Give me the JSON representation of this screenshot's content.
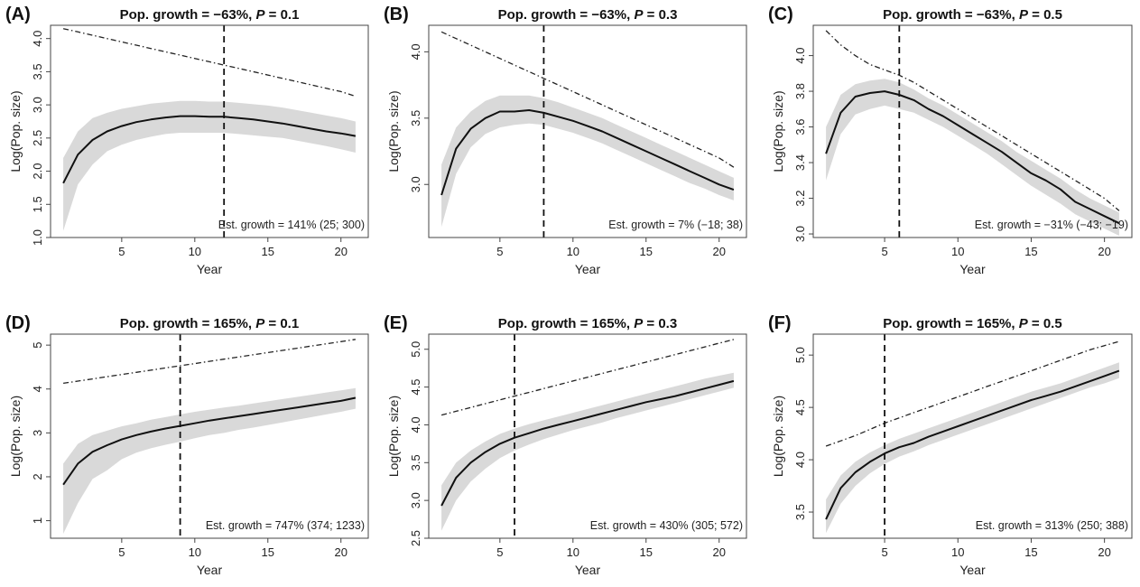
{
  "chart_data": [
    {
      "panel": "(A)",
      "type": "line",
      "title": "Pop. growth = −63%,",
      "title_p_symbol": "P",
      "title_p_value": "= 0.1",
      "xlabel": "Year",
      "ylabel": "Log(Pop. size)",
      "xlim": [
        1,
        21
      ],
      "ylim": [
        1.0,
        4.2
      ],
      "xticks": [
        5,
        10,
        15,
        20
      ],
      "yticks": [
        1.0,
        1.5,
        2.0,
        2.5,
        3.0,
        3.5,
        4.0
      ],
      "ytick_labels": [
        "1.0",
        "1.5",
        "2.0",
        "2.5",
        "3.0",
        "3.5",
        "4.0"
      ],
      "vline_x": 12,
      "annotation": "Est. growth = 141% (25; 300)",
      "x": [
        1,
        2,
        3,
        4,
        5,
        6,
        7,
        8,
        9,
        10,
        11,
        12,
        13,
        14,
        15,
        16,
        17,
        18,
        19,
        20,
        21
      ],
      "series": [
        {
          "style": "solid",
          "values": [
            1.82,
            2.25,
            2.47,
            2.6,
            2.68,
            2.74,
            2.78,
            2.81,
            2.83,
            2.83,
            2.82,
            2.82,
            2.8,
            2.78,
            2.75,
            2.72,
            2.68,
            2.64,
            2.6,
            2.57,
            2.53
          ],
          "ci_lower": [
            1.1,
            1.8,
            2.1,
            2.3,
            2.4,
            2.47,
            2.52,
            2.56,
            2.58,
            2.58,
            2.58,
            2.58,
            2.56,
            2.54,
            2.52,
            2.5,
            2.46,
            2.42,
            2.38,
            2.33,
            2.28
          ],
          "ci_upper": [
            2.2,
            2.6,
            2.8,
            2.88,
            2.94,
            2.98,
            3.02,
            3.04,
            3.06,
            3.06,
            3.05,
            3.05,
            3.03,
            3.01,
            2.99,
            2.96,
            2.92,
            2.88,
            2.84,
            2.8,
            2.75
          ]
        },
        {
          "style": "dotdash",
          "values": [
            4.15,
            4.1,
            4.05,
            4.0,
            3.95,
            3.9,
            3.85,
            3.8,
            3.75,
            3.7,
            3.65,
            3.6,
            3.55,
            3.5,
            3.45,
            3.4,
            3.35,
            3.3,
            3.25,
            3.2,
            3.13
          ]
        }
      ]
    },
    {
      "panel": "(B)",
      "type": "line",
      "title": "Pop. growth = −63%,",
      "title_p_symbol": "P",
      "title_p_value": "= 0.3",
      "xlabel": "Year",
      "ylabel": "Log(Pop. size)",
      "xlim": [
        1,
        21
      ],
      "ylim": [
        2.6,
        4.2
      ],
      "xticks": [
        5,
        10,
        15,
        20
      ],
      "yticks": [
        3.0,
        3.5,
        4.0
      ],
      "ytick_labels": [
        "3.0",
        "3.5",
        "4.0"
      ],
      "vline_x": 8,
      "annotation": "Est. growth = 7% (−18; 38)",
      "x": [
        1,
        2,
        3,
        4,
        5,
        6,
        7,
        8,
        9,
        10,
        11,
        12,
        13,
        14,
        15,
        16,
        17,
        18,
        19,
        20,
        21
      ],
      "series": [
        {
          "style": "solid",
          "values": [
            2.92,
            3.27,
            3.42,
            3.5,
            3.55,
            3.55,
            3.56,
            3.54,
            3.51,
            3.48,
            3.44,
            3.4,
            3.35,
            3.3,
            3.25,
            3.2,
            3.15,
            3.1,
            3.05,
            3.0,
            2.96
          ],
          "ci_lower": [
            2.68,
            3.08,
            3.28,
            3.38,
            3.43,
            3.45,
            3.46,
            3.45,
            3.42,
            3.39,
            3.35,
            3.31,
            3.26,
            3.21,
            3.16,
            3.11,
            3.06,
            3.01,
            2.97,
            2.92,
            2.88
          ],
          "ci_upper": [
            3.15,
            3.43,
            3.55,
            3.63,
            3.67,
            3.67,
            3.67,
            3.65,
            3.62,
            3.58,
            3.54,
            3.5,
            3.45,
            3.4,
            3.35,
            3.3,
            3.25,
            3.2,
            3.15,
            3.1,
            3.05
          ]
        },
        {
          "style": "dotdash",
          "values": [
            4.15,
            4.1,
            4.05,
            4.0,
            3.95,
            3.9,
            3.85,
            3.8,
            3.75,
            3.7,
            3.65,
            3.6,
            3.55,
            3.5,
            3.45,
            3.4,
            3.35,
            3.3,
            3.25,
            3.2,
            3.13
          ]
        }
      ]
    },
    {
      "panel": "(C)",
      "type": "line",
      "title": "Pop. growth = −63%,",
      "title_p_symbol": "P",
      "title_p_value": "= 0.5",
      "xlabel": "Year",
      "ylabel": "Log(Pop. size)",
      "xlim": [
        1,
        21
      ],
      "ylim": [
        2.98,
        4.17
      ],
      "xticks": [
        5,
        10,
        15,
        20
      ],
      "yticks": [
        3.0,
        3.2,
        3.4,
        3.6,
        3.8,
        4.0
      ],
      "ytick_labels": [
        "3.0",
        "3.2",
        "3.4",
        "3.6",
        "3.8",
        "4.0"
      ],
      "vline_x": 6,
      "annotation": "Est. growth = −31% (−43; −19)",
      "x": [
        1,
        2,
        3,
        4,
        5,
        6,
        7,
        8,
        9,
        10,
        11,
        12,
        13,
        14,
        15,
        16,
        17,
        18,
        19,
        20,
        21
      ],
      "series": [
        {
          "style": "solid",
          "values": [
            3.45,
            3.68,
            3.77,
            3.79,
            3.8,
            3.78,
            3.75,
            3.7,
            3.66,
            3.61,
            3.56,
            3.51,
            3.46,
            3.4,
            3.34,
            3.3,
            3.25,
            3.18,
            3.14,
            3.1,
            3.06
          ],
          "ci_lower": [
            3.3,
            3.56,
            3.67,
            3.7,
            3.72,
            3.7,
            3.68,
            3.64,
            3.6,
            3.55,
            3.5,
            3.45,
            3.39,
            3.33,
            3.27,
            3.22,
            3.17,
            3.11,
            3.07,
            3.03,
            2.99
          ],
          "ci_upper": [
            3.6,
            3.78,
            3.84,
            3.86,
            3.87,
            3.85,
            3.81,
            3.76,
            3.72,
            3.67,
            3.62,
            3.57,
            3.52,
            3.46,
            3.41,
            3.36,
            3.31,
            3.25,
            3.2,
            3.16,
            3.12
          ]
        },
        {
          "style": "dotdash",
          "values": [
            4.14,
            4.06,
            4.0,
            3.95,
            3.92,
            3.89,
            3.85,
            3.8,
            3.75,
            3.7,
            3.65,
            3.6,
            3.55,
            3.5,
            3.45,
            3.4,
            3.35,
            3.3,
            3.25,
            3.2,
            3.13
          ]
        }
      ]
    },
    {
      "panel": "(D)",
      "type": "line",
      "title": "Pop. growth = 165%,",
      "title_p_symbol": "P",
      "title_p_value": "= 0.1",
      "xlabel": "Year",
      "ylabel": "Log(Pop. size)",
      "xlim": [
        1,
        21
      ],
      "ylim": [
        0.6,
        5.25
      ],
      "xticks": [
        5,
        10,
        15,
        20
      ],
      "yticks": [
        1,
        2,
        3,
        4,
        5
      ],
      "ytick_labels": [
        "1",
        "2",
        "3",
        "4",
        "5"
      ],
      "vline_x": 9,
      "annotation": "Est. growth = 747% (374; 1233)",
      "x": [
        1,
        2,
        3,
        4,
        5,
        6,
        7,
        8,
        9,
        10,
        11,
        12,
        13,
        14,
        15,
        16,
        17,
        18,
        19,
        20,
        21
      ],
      "series": [
        {
          "style": "solid",
          "values": [
            1.82,
            2.3,
            2.57,
            2.72,
            2.85,
            2.95,
            3.03,
            3.1,
            3.16,
            3.22,
            3.28,
            3.33,
            3.38,
            3.43,
            3.48,
            3.53,
            3.58,
            3.63,
            3.68,
            3.73,
            3.8
          ],
          "ci_lower": [
            0.7,
            1.4,
            1.95,
            2.15,
            2.4,
            2.55,
            2.65,
            2.73,
            2.8,
            2.88,
            2.95,
            3.0,
            3.07,
            3.12,
            3.18,
            3.24,
            3.3,
            3.36,
            3.42,
            3.48,
            3.55
          ],
          "ci_upper": [
            2.3,
            2.75,
            2.95,
            3.05,
            3.15,
            3.22,
            3.3,
            3.36,
            3.42,
            3.48,
            3.53,
            3.58,
            3.62,
            3.67,
            3.72,
            3.77,
            3.82,
            3.87,
            3.92,
            3.97,
            4.02
          ]
        },
        {
          "style": "dotdash",
          "values": [
            4.13,
            4.18,
            4.23,
            4.28,
            4.33,
            4.38,
            4.43,
            4.48,
            4.53,
            4.58,
            4.63,
            4.68,
            4.73,
            4.78,
            4.83,
            4.88,
            4.93,
            4.98,
            5.03,
            5.08,
            5.13
          ]
        }
      ]
    },
    {
      "panel": "(E)",
      "type": "line",
      "title": "Pop. growth = 165%,",
      "title_p_symbol": "P",
      "title_p_value": "= 0.3",
      "xlabel": "Year",
      "ylabel": "Log(Pop. size)",
      "xlim": [
        1,
        21
      ],
      "ylim": [
        2.5,
        5.2
      ],
      "xticks": [
        5,
        10,
        15,
        20
      ],
      "yticks": [
        2.5,
        3.0,
        3.5,
        4.0,
        4.5,
        5.0
      ],
      "ytick_labels": [
        "2.5",
        "3.0",
        "3.5",
        "4.0",
        "4.5",
        "5.0"
      ],
      "vline_x": 6,
      "annotation": "Est. growth = 430% (305; 572)",
      "x": [
        1,
        2,
        3,
        4,
        5,
        6,
        7,
        8,
        9,
        10,
        11,
        12,
        13,
        14,
        15,
        16,
        17,
        18,
        19,
        20,
        21
      ],
      "series": [
        {
          "style": "solid",
          "values": [
            2.93,
            3.3,
            3.5,
            3.64,
            3.75,
            3.83,
            3.89,
            3.95,
            4.0,
            4.05,
            4.1,
            4.15,
            4.2,
            4.25,
            4.3,
            4.34,
            4.38,
            4.43,
            4.48,
            4.53,
            4.58
          ],
          "ci_lower": [
            2.6,
            3.0,
            3.25,
            3.42,
            3.56,
            3.66,
            3.74,
            3.81,
            3.87,
            3.93,
            3.98,
            4.03,
            4.09,
            4.14,
            4.19,
            4.24,
            4.29,
            4.34,
            4.39,
            4.44,
            4.49
          ],
          "ci_upper": [
            3.2,
            3.5,
            3.66,
            3.78,
            3.88,
            3.95,
            4.01,
            4.06,
            4.11,
            4.16,
            4.21,
            4.26,
            4.31,
            4.36,
            4.41,
            4.46,
            4.51,
            4.56,
            4.61,
            4.65,
            4.69
          ]
        },
        {
          "style": "dotdash",
          "values": [
            4.13,
            4.18,
            4.23,
            4.28,
            4.33,
            4.38,
            4.43,
            4.48,
            4.53,
            4.58,
            4.63,
            4.68,
            4.73,
            4.78,
            4.83,
            4.88,
            4.93,
            4.98,
            5.03,
            5.08,
            5.13
          ]
        }
      ]
    },
    {
      "panel": "(F)",
      "type": "line",
      "title": "Pop. growth = 165%,",
      "title_p_symbol": "P",
      "title_p_value": "= 0.5",
      "xlabel": "Year",
      "ylabel": "Log(Pop. size)",
      "xlim": [
        1,
        21
      ],
      "ylim": [
        3.25,
        5.2
      ],
      "xticks": [
        5,
        10,
        15,
        20
      ],
      "yticks": [
        3.5,
        4.0,
        4.5,
        5.0
      ],
      "ytick_labels": [
        "3.5",
        "4.0",
        "4.5",
        "5.0"
      ],
      "vline_x": 5,
      "annotation": "Est. growth = 313% (250; 388)",
      "x": [
        1,
        2,
        3,
        4,
        5,
        6,
        7,
        8,
        9,
        10,
        11,
        12,
        13,
        14,
        15,
        16,
        17,
        18,
        19,
        20,
        21
      ],
      "series": [
        {
          "style": "solid",
          "values": [
            3.43,
            3.73,
            3.88,
            3.98,
            4.06,
            4.12,
            4.16,
            4.22,
            4.27,
            4.32,
            4.37,
            4.42,
            4.47,
            4.52,
            4.57,
            4.61,
            4.65,
            4.7,
            4.75,
            4.8,
            4.85
          ],
          "ci_lower": [
            3.3,
            3.58,
            3.75,
            3.87,
            3.96,
            4.03,
            4.08,
            4.14,
            4.19,
            4.24,
            4.29,
            4.34,
            4.39,
            4.44,
            4.49,
            4.54,
            4.59,
            4.64,
            4.69,
            4.73,
            4.78
          ],
          "ci_upper": [
            3.62,
            3.85,
            3.98,
            4.07,
            4.14,
            4.2,
            4.25,
            4.3,
            4.35,
            4.4,
            4.45,
            4.5,
            4.55,
            4.6,
            4.65,
            4.69,
            4.73,
            4.78,
            4.83,
            4.88,
            4.93
          ]
        },
        {
          "style": "dotdash",
          "values": [
            4.13,
            4.18,
            4.23,
            4.29,
            4.35,
            4.4,
            4.45,
            4.5,
            4.55,
            4.6,
            4.65,
            4.7,
            4.75,
            4.8,
            4.85,
            4.9,
            4.95,
            5.0,
            5.05,
            5.09,
            5.13
          ]
        }
      ]
    }
  ]
}
